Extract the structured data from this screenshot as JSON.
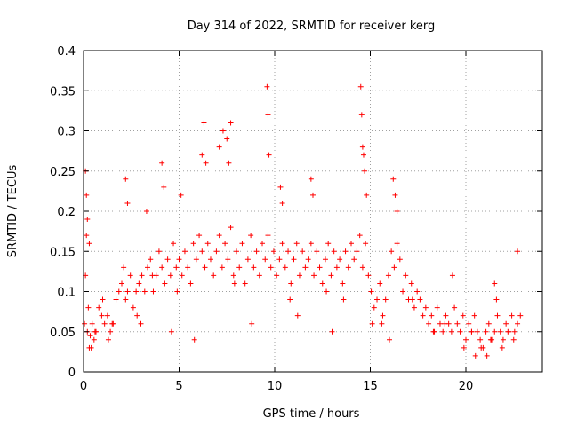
{
  "chart_data": {
    "type": "scatter",
    "title": "Day 314 of 2022, SRMTID for receiver kerg",
    "xlabel": "GPS time / hours",
    "ylabel": "SRMTID / TECUs",
    "xlim": [
      0,
      24
    ],
    "ylim": [
      0,
      0.4
    ],
    "x_ticks": [
      0,
      5,
      10,
      15,
      20
    ],
    "x_tick_labels": [
      "0",
      "5",
      "10",
      "15",
      "20"
    ],
    "y_ticks": [
      0,
      0.05,
      0.1,
      0.15,
      0.2,
      0.25,
      0.3,
      0.35,
      0.4
    ],
    "y_tick_labels": [
      "0",
      "0.05",
      "0.1",
      "0.15",
      "0.2",
      "0.25",
      "0.3",
      "0.35",
      "0.4"
    ],
    "grid": true,
    "marker": "+",
    "marker_color": "#ff0000",
    "series": [
      {
        "name": "SRMTID",
        "x": [
          0.05,
          0.1,
          0.15,
          0.2,
          0.25,
          0.3,
          0.35,
          0.45,
          0.55,
          0.65,
          0.8,
          0.95,
          1.1,
          1.25,
          1.4,
          1.55,
          1.7,
          1.85,
          2.0,
          2.1,
          2.2,
          2.3,
          2.45,
          2.6,
          2.75,
          2.9,
          3.05,
          3.2,
          3.35,
          3.5,
          3.65,
          3.8,
          3.95,
          4.1,
          4.25,
          4.4,
          4.55,
          4.7,
          4.85,
          5.0,
          5.15,
          5.3,
          5.45,
          5.6,
          5.75,
          5.9,
          6.05,
          6.2,
          6.35,
          6.5,
          6.65,
          6.8,
          6.95,
          7.1,
          7.25,
          7.4,
          7.55,
          7.7,
          7.85,
          8.0,
          8.15,
          8.3,
          8.45,
          8.6,
          8.75,
          8.9,
          9.05,
          9.2,
          9.35,
          9.5,
          9.65,
          9.8,
          9.95,
          10.1,
          10.25,
          10.4,
          10.55,
          10.7,
          10.85,
          11.0,
          11.15,
          11.3,
          11.45,
          11.6,
          11.75,
          11.9,
          12.05,
          12.2,
          12.35,
          12.5,
          12.65,
          12.8,
          12.95,
          13.1,
          13.25,
          13.4,
          13.55,
          13.7,
          13.85,
          14.0,
          14.15,
          14.3,
          14.45,
          14.6,
          14.75,
          14.9,
          15.05,
          15.2,
          15.35,
          15.5,
          15.65,
          15.8,
          15.95,
          16.1,
          16.25,
          16.4,
          16.55,
          16.7,
          16.85,
          17.0,
          17.15,
          17.3,
          17.45,
          17.6,
          17.75,
          17.9,
          18.05,
          18.2,
          18.35,
          18.5,
          18.65,
          18.8,
          18.95,
          19.1,
          19.25,
          19.4,
          19.55,
          19.7,
          19.85,
          20.0,
          20.15,
          20.3,
          20.45,
          20.6,
          20.75,
          20.9,
          21.05,
          21.2,
          21.35,
          21.5,
          21.65,
          21.8,
          21.95,
          22.1,
          22.25,
          22.4,
          22.55,
          22.7,
          22.85,
          0.1,
          0.15,
          0.2,
          0.3,
          2.2,
          2.3,
          3.3,
          4.1,
          4.2,
          5.1,
          6.2,
          6.3,
          6.4,
          7.1,
          7.3,
          7.5,
          7.6,
          7.7,
          9.6,
          9.65,
          9.7,
          10.3,
          10.4,
          11.9,
          12.0,
          14.5,
          14.55,
          14.6,
          14.65,
          14.7,
          14.8,
          16.2,
          16.3,
          16.4,
          19.3,
          21.5,
          21.6,
          22.7,
          0.4,
          0.6,
          1.3,
          1.5,
          2.8,
          3.0,
          4.6,
          5.8,
          8.8,
          11.2,
          13.0,
          15.6,
          16.0,
          18.3,
          19.9,
          20.5,
          20.8,
          21.1,
          21.9,
          22.5,
          1.0,
          3.6,
          4.9,
          7.9,
          10.8,
          12.7,
          13.6,
          15.1,
          17.2,
          18.9,
          20.3,
          21.3,
          22.2
        ],
        "y": [
          0.06,
          0.12,
          0.17,
          0.05,
          0.08,
          0.03,
          0.045,
          0.06,
          0.04,
          0.05,
          0.08,
          0.07,
          0.06,
          0.07,
          0.05,
          0.06,
          0.09,
          0.1,
          0.11,
          0.13,
          0.09,
          0.1,
          0.12,
          0.08,
          0.1,
          0.11,
          0.12,
          0.1,
          0.13,
          0.14,
          0.1,
          0.12,
          0.15,
          0.13,
          0.11,
          0.14,
          0.12,
          0.16,
          0.13,
          0.14,
          0.12,
          0.15,
          0.13,
          0.11,
          0.16,
          0.14,
          0.17,
          0.15,
          0.13,
          0.16,
          0.14,
          0.12,
          0.15,
          0.17,
          0.13,
          0.16,
          0.14,
          0.18,
          0.12,
          0.15,
          0.13,
          0.16,
          0.11,
          0.14,
          0.17,
          0.13,
          0.15,
          0.12,
          0.16,
          0.14,
          0.17,
          0.13,
          0.15,
          0.12,
          0.14,
          0.16,
          0.13,
          0.15,
          0.11,
          0.14,
          0.16,
          0.12,
          0.15,
          0.13,
          0.14,
          0.16,
          0.12,
          0.15,
          0.13,
          0.11,
          0.14,
          0.16,
          0.12,
          0.15,
          0.13,
          0.14,
          0.11,
          0.15,
          0.13,
          0.16,
          0.14,
          0.15,
          0.17,
          0.13,
          0.16,
          0.12,
          0.1,
          0.08,
          0.09,
          0.11,
          0.07,
          0.09,
          0.12,
          0.15,
          0.13,
          0.16,
          0.14,
          0.1,
          0.12,
          0.09,
          0.11,
          0.08,
          0.1,
          0.09,
          0.07,
          0.08,
          0.06,
          0.07,
          0.05,
          0.08,
          0.06,
          0.05,
          0.07,
          0.06,
          0.05,
          0.08,
          0.06,
          0.05,
          0.07,
          0.04,
          0.06,
          0.05,
          0.07,
          0.05,
          0.04,
          0.03,
          0.05,
          0.06,
          0.04,
          0.05,
          0.07,
          0.05,
          0.04,
          0.06,
          0.05,
          0.07,
          0.05,
          0.06,
          0.07,
          0.25,
          0.22,
          0.19,
          0.16,
          0.24,
          0.21,
          0.2,
          0.26,
          0.23,
          0.22,
          0.27,
          0.31,
          0.26,
          0.28,
          0.3,
          0.29,
          0.26,
          0.31,
          0.355,
          0.32,
          0.27,
          0.23,
          0.21,
          0.24,
          0.22,
          0.355,
          0.32,
          0.28,
          0.27,
          0.25,
          0.22,
          0.24,
          0.22,
          0.2,
          0.12,
          0.11,
          0.09,
          0.15,
          0.03,
          0.05,
          0.04,
          0.06,
          0.07,
          0.06,
          0.05,
          0.04,
          0.06,
          0.07,
          0.05,
          0.06,
          0.04,
          0.05,
          0.03,
          0.02,
          0.03,
          0.02,
          0.03,
          0.04,
          0.09,
          0.12,
          0.1,
          0.11,
          0.09,
          0.1,
          0.09,
          0.06,
          0.09,
          0.06,
          0.05,
          0.04,
          0.05
        ]
      }
    ]
  }
}
